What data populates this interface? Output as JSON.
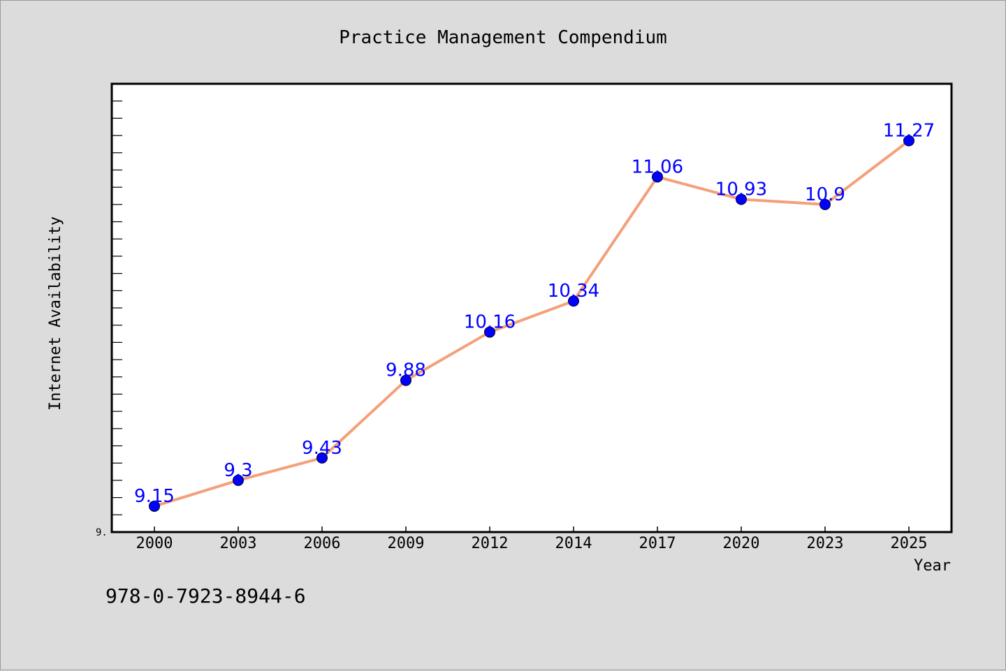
{
  "isbn": "978-0-7923-8944-6",
  "colors": {
    "background": "#dcdcdc",
    "plot_area": "#ffffff",
    "line": "#f4a07a",
    "marker": "#0000ff",
    "data_label": "#0000ff"
  },
  "chart_data": {
    "type": "line",
    "title": "Practice Management Compendium",
    "xlabel": "Year",
    "ylabel": "Internet Availability",
    "categories": [
      "2000",
      "2003",
      "2006",
      "2009",
      "2012",
      "2014",
      "2017",
      "2020",
      "2023",
      "2025"
    ],
    "series": [
      {
        "values": [
          9.15,
          9.3,
          9.43,
          9.88,
          10.16,
          10.34,
          11.06,
          10.93,
          10.9,
          11.27
        ]
      }
    ],
    "ylim": [
      9.0,
      11.6
    ],
    "y_tick_label": "9.",
    "grid": false,
    "legend": "none"
  }
}
